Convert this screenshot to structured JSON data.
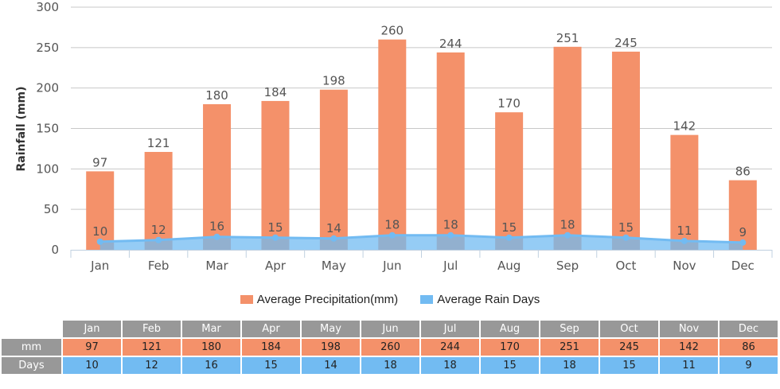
{
  "chart_data": {
    "type": "bar",
    "title": "",
    "xlabel": "",
    "ylabel": "Rainfall (mm)",
    "ylim": [
      0,
      300
    ],
    "yticks": [
      0,
      50,
      100,
      150,
      200,
      250,
      300
    ],
    "grid": true,
    "legend_position": "bottom",
    "categories": [
      "Jan",
      "Feb",
      "Mar",
      "Apr",
      "May",
      "Jun",
      "Jul",
      "Aug",
      "Sep",
      "Oct",
      "Nov",
      "Dec"
    ],
    "series": [
      {
        "name": "Average Precipitation(mm)",
        "type": "bar",
        "color": "#f4916a",
        "values": [
          97,
          121,
          180,
          184,
          198,
          260,
          244,
          170,
          251,
          245,
          142,
          86
        ]
      },
      {
        "name": "Average Rain Days",
        "type": "area",
        "color": "#72bbf2",
        "values": [
          10,
          12,
          16,
          15,
          14,
          18,
          18,
          15,
          18,
          15,
          11,
          9
        ]
      }
    ]
  },
  "legend": [
    {
      "label": "Average Precipitation(mm)",
      "color": "#f4916a"
    },
    {
      "label": "Average Rain Days",
      "color": "#72bbf2"
    }
  ],
  "table": {
    "row_labels": {
      "mm": "mm",
      "days": "Days"
    },
    "months": [
      "Jan",
      "Feb",
      "Mar",
      "Apr",
      "May",
      "Jun",
      "Jul",
      "Aug",
      "Sep",
      "Oct",
      "Nov",
      "Dec"
    ],
    "mm": [
      "97",
      "121",
      "180",
      "184",
      "198",
      "260",
      "244",
      "170",
      "251",
      "245",
      "142",
      "86"
    ],
    "days": [
      "10",
      "12",
      "16",
      "15",
      "14",
      "18",
      "18",
      "15",
      "18",
      "15",
      "11",
      "9"
    ]
  }
}
